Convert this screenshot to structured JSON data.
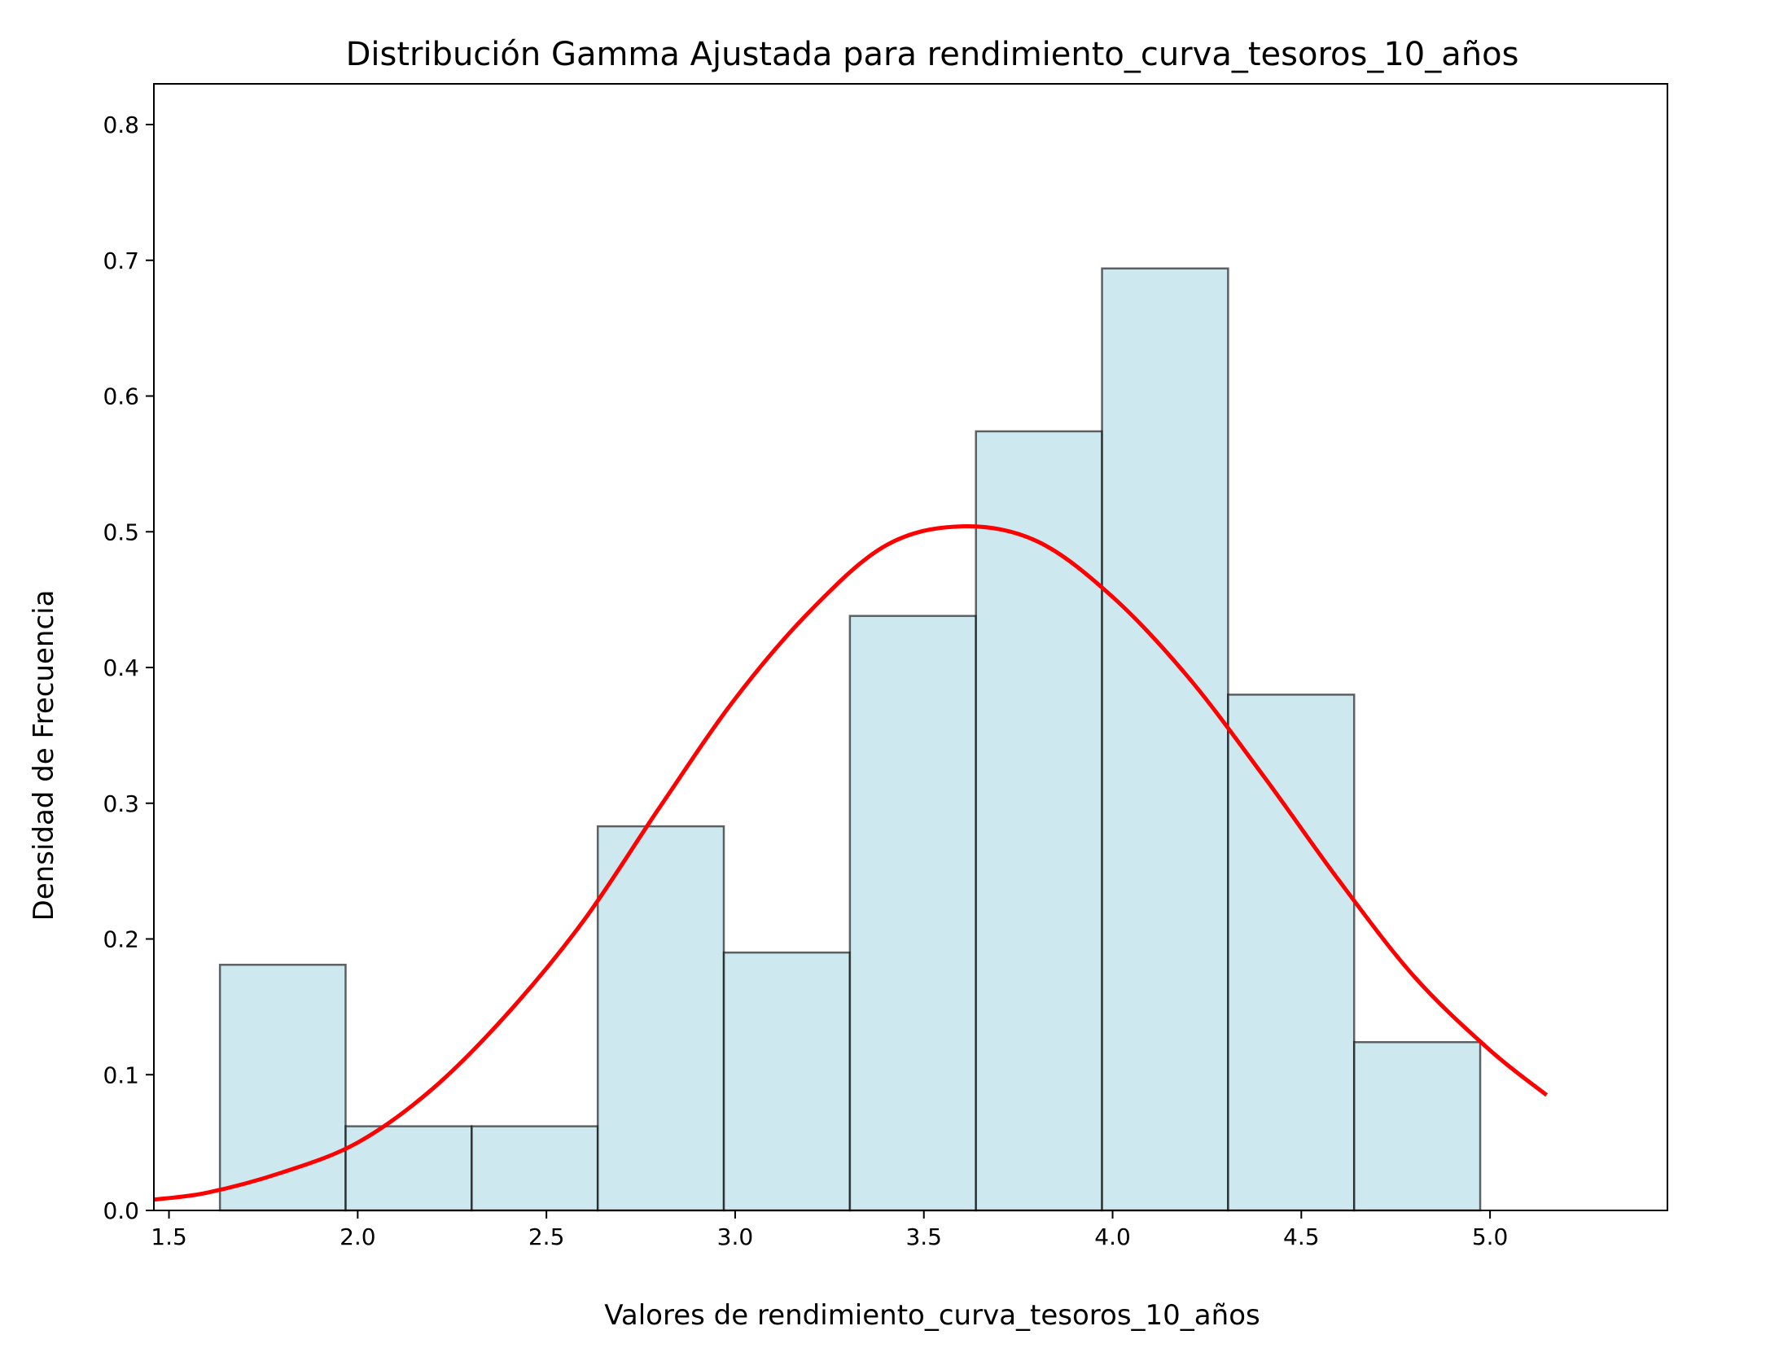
{
  "chart_data": {
    "type": "bar",
    "title": "Distribución Gamma Ajustada para rendimiento_curva_tesoros_10_años",
    "xlabel": "Valores de rendimiento_curva_tesoros_10_años",
    "ylabel": "Densidad de Frecuencia",
    "xlim": [
      1.46,
      5.47
    ],
    "ylim": [
      0,
      0.83
    ],
    "xticks": [
      "1.5",
      "2.0",
      "2.5",
      "3.0",
      "3.5",
      "4.0",
      "4.5",
      "5.0"
    ],
    "yticks": [
      "0.0",
      "0.1",
      "0.2",
      "0.3",
      "0.4",
      "0.5",
      "0.6",
      "0.7",
      "0.8"
    ],
    "grid": false,
    "legend": "none",
    "histogram": {
      "bin_edges": [
        1.635,
        1.968,
        2.302,
        2.636,
        2.97,
        3.304,
        3.638,
        3.972,
        4.306,
        4.64,
        4.974
      ],
      "densities": [
        0.181,
        0.062,
        0.062,
        0.283,
        0.19,
        0.438,
        0.574,
        0.694,
        0.38,
        0.124
      ],
      "color": "#add8e6",
      "edge_color": "#000000"
    },
    "fitted_curve": {
      "color": "#ff0000",
      "x": [
        1.46,
        1.6,
        1.8,
        2.0,
        2.2,
        2.4,
        2.6,
        2.8,
        3.0,
        3.2,
        3.4,
        3.6,
        3.8,
        4.0,
        4.2,
        4.4,
        4.6,
        4.8,
        5.0,
        5.15
      ],
      "y": [
        0.008,
        0.013,
        0.028,
        0.05,
        0.09,
        0.146,
        0.214,
        0.297,
        0.377,
        0.442,
        0.49,
        0.504,
        0.493,
        0.452,
        0.393,
        0.32,
        0.243,
        0.172,
        0.118,
        0.085
      ]
    }
  }
}
